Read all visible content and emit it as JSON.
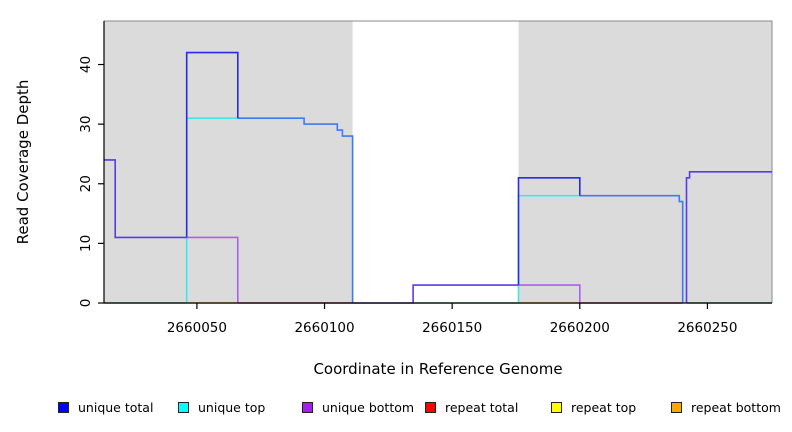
{
  "figure": {
    "xlabel": "Coordinate in Reference Genome",
    "ylabel": "Read Coverage Depth"
  },
  "legend": {
    "items": [
      {
        "label": "unique total",
        "color": "#0000FF"
      },
      {
        "label": "unique top",
        "color": "#00FFFF"
      },
      {
        "label": "unique bottom",
        "color": "#A020F0"
      },
      {
        "label": "repeat total",
        "color": "#FF0000"
      },
      {
        "label": "repeat top",
        "color": "#FFFF00"
      },
      {
        "label": "repeat bottom",
        "color": "#FFA500"
      }
    ]
  },
  "chart_data": {
    "type": "line",
    "subtype": "step",
    "title": "",
    "xlabel": "Coordinate in Reference Genome",
    "ylabel": "Read Coverage Depth",
    "xlim": [
      2660013.6,
      2660275.3
    ],
    "ylim": [
      0,
      47.3
    ],
    "x_ticks": [
      2660050,
      2660100,
      2660150,
      2660200,
      2660250
    ],
    "y_ticks": [
      0,
      10,
      20,
      30,
      40
    ],
    "grid": false,
    "legend_position": "bottom",
    "background_color": "#ffffff",
    "shaded_regions": [
      {
        "x0": 2660013.6,
        "x1": 2660111,
        "color": "#DBDBDB"
      },
      {
        "x0": 2660176,
        "x1": 2660275.3,
        "color": "#DBDBDB"
      }
    ],
    "series": [
      {
        "name": "unique total",
        "color": "#0000FF",
        "steps": [
          [
            2660013.6,
            24
          ],
          [
            2660018,
            11
          ],
          [
            2660046,
            42
          ],
          [
            2660066,
            31
          ],
          [
            2660092,
            30
          ],
          [
            2660105,
            29
          ],
          [
            2660107,
            28
          ],
          [
            2660111,
            0
          ],
          [
            2660135,
            3
          ],
          [
            2660176,
            21
          ],
          [
            2660200,
            18
          ],
          [
            2660239,
            17
          ],
          [
            2660240,
            0
          ],
          [
            2660242,
            21
          ],
          [
            2660243,
            22
          ],
          [
            2660275.3,
            22
          ]
        ]
      },
      {
        "name": "unique top",
        "color": "#00FFFF",
        "steps": [
          [
            2660013.6,
            0
          ],
          [
            2660046,
            31
          ],
          [
            2660092,
            30
          ],
          [
            2660105,
            29
          ],
          [
            2660107,
            28
          ],
          [
            2660111,
            0
          ],
          [
            2660176,
            18
          ],
          [
            2660239,
            17
          ],
          [
            2660240,
            0
          ],
          [
            2660275.3,
            0
          ]
        ]
      },
      {
        "name": "unique bottom",
        "color": "#A020F0",
        "steps": [
          [
            2660013.6,
            24
          ],
          [
            2660018,
            11
          ],
          [
            2660066,
            0
          ],
          [
            2660135,
            3
          ],
          [
            2660200,
            0
          ],
          [
            2660242,
            21
          ],
          [
            2660243,
            22
          ],
          [
            2660275.3,
            22
          ]
        ]
      },
      {
        "name": "repeat total",
        "color": "#FF0000",
        "steps": [
          [
            2660013.6,
            0
          ],
          [
            2660275.3,
            0
          ]
        ]
      },
      {
        "name": "repeat top",
        "color": "#FFFF00",
        "steps": [
          [
            2660013.6,
            0
          ],
          [
            2660275.3,
            0
          ]
        ]
      },
      {
        "name": "repeat bottom",
        "color": "#FFA500",
        "steps": [
          [
            2660013.6,
            0
          ],
          [
            2660275.3,
            0
          ]
        ]
      }
    ],
    "render_paths": [
      {
        "name": "zero-line-green-left",
        "color": "#55BE6E",
        "points": [
          [
            2660013.6,
            0
          ],
          [
            2660046,
            0
          ]
        ]
      },
      {
        "name": "zero-line-green-mid",
        "color": "#55BE6E",
        "points": [
          [
            2660135,
            0
          ],
          [
            2660176,
            0
          ]
        ]
      },
      {
        "name": "zero-line-green-right",
        "color": "#55BE6E",
        "points": [
          [
            2660242,
            0
          ],
          [
            2660275.3,
            0
          ]
        ]
      },
      {
        "name": "zero-line-orange-left",
        "color": "#FFA500",
        "points": [
          [
            2660046,
            0
          ],
          [
            2660066,
            0
          ]
        ]
      },
      {
        "name": "zero-line-orange-right",
        "color": "#FFA500",
        "points": [
          [
            2660176,
            0
          ],
          [
            2660200,
            0
          ]
        ]
      },
      {
        "name": "zero-line-red-left",
        "color": "#E03A64",
        "points": [
          [
            2660066,
            0
          ],
          [
            2660111,
            0
          ]
        ]
      },
      {
        "name": "zero-line-red-right",
        "color": "#E03A64",
        "points": [
          [
            2660200,
            0
          ],
          [
            2660240.3,
            0
          ]
        ]
      },
      {
        "name": "unique-top-left",
        "color": "#3FE8E8",
        "points": [
          [
            2660046,
            0
          ],
          [
            2660046,
            31
          ],
          [
            2660066,
            31
          ]
        ]
      },
      {
        "name": "unique-top-right",
        "color": "#3FE8E8",
        "points": [
          [
            2660176,
            0
          ],
          [
            2660176,
            18
          ],
          [
            2660200,
            18
          ]
        ]
      },
      {
        "name": "unique-bottom-left",
        "color": "#A763ED",
        "points": [
          [
            2660046,
            11
          ],
          [
            2660066,
            11
          ],
          [
            2660066,
            0
          ]
        ]
      },
      {
        "name": "unique-bottom-right",
        "color": "#A763ED",
        "points": [
          [
            2660176,
            3
          ],
          [
            2660200,
            3
          ],
          [
            2660200,
            0
          ]
        ]
      },
      {
        "name": "total-steps-left",
        "color": "#3D7BF5",
        "points": [
          [
            2660066,
            31
          ],
          [
            2660092,
            31
          ],
          [
            2660092,
            30
          ],
          [
            2660105,
            30
          ],
          [
            2660105,
            29
          ],
          [
            2660107,
            29
          ],
          [
            2660107,
            28
          ],
          [
            2660111,
            28
          ],
          [
            2660111,
            0
          ]
        ]
      },
      {
        "name": "total-steps-right",
        "color": "#3D7BF5",
        "points": [
          [
            2660200,
            18
          ],
          [
            2660239,
            18
          ],
          [
            2660239,
            17
          ],
          [
            2660240.3,
            17
          ],
          [
            2660240.3,
            0
          ]
        ]
      },
      {
        "name": "total-peak",
        "color": "#2B2BE6",
        "points": [
          [
            2660046,
            11
          ],
          [
            2660046,
            42
          ],
          [
            2660066,
            42
          ],
          [
            2660066,
            31
          ]
        ]
      },
      {
        "name": "total-block-21",
        "color": "#2B2BE6",
        "points": [
          [
            2660176,
            3
          ],
          [
            2660176,
            21
          ],
          [
            2660200,
            21
          ],
          [
            2660200,
            18
          ]
        ]
      },
      {
        "name": "overlap-left",
        "color": "#5A3BE8",
        "points": [
          [
            2660013.6,
            24
          ],
          [
            2660018,
            24
          ],
          [
            2660018,
            11
          ],
          [
            2660046,
            11
          ]
        ]
      },
      {
        "name": "overlap-mid",
        "color": "#5A3BE8",
        "points": [
          [
            2660111,
            0
          ],
          [
            2660134.7,
            0
          ],
          [
            2660134.7,
            3
          ],
          [
            2660176,
            3
          ]
        ]
      },
      {
        "name": "overlap-right",
        "color": "#5A3BE8",
        "points": [
          [
            2660241.8,
            0
          ],
          [
            2660241.8,
            21
          ],
          [
            2660243,
            21
          ],
          [
            2660243,
            22
          ],
          [
            2660275.3,
            22
          ]
        ]
      }
    ]
  }
}
